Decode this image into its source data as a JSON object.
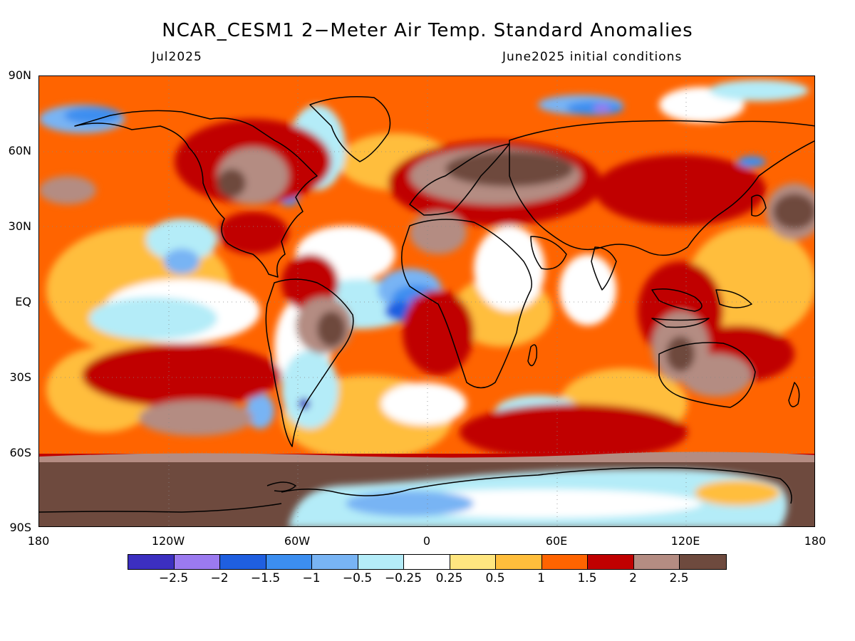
{
  "title": "NCAR_CESM1 2−Meter Air Temp. Standard Anomalies",
  "subtitle_left": "Jul2025",
  "subtitle_right": "June2025 initial conditions",
  "y_axis_labels": [
    "90N",
    "60N",
    "30N",
    "EQ",
    "30S",
    "60S",
    "90S"
  ],
  "x_axis_labels": [
    "180",
    "120W",
    "60W",
    "0",
    "60E",
    "120E",
    "180"
  ],
  "colorbar": {
    "colors": [
      "#3c2fc0",
      "#9b7af0",
      "#1f5fe0",
      "#3c8ef0",
      "#78b4f4",
      "#b4ecf8",
      "#ffffff",
      "#ffe680",
      "#ffbe3c",
      "#ff6400",
      "#c00000",
      "#b48c82",
      "#6e4a3e"
    ],
    "tick_labels": [
      "−2.5",
      "−2",
      "−1.5",
      "−1",
      "−0.5",
      "−0.25",
      "0.25",
      "0.5",
      "1",
      "1.5",
      "2",
      "2.5"
    ]
  }
}
